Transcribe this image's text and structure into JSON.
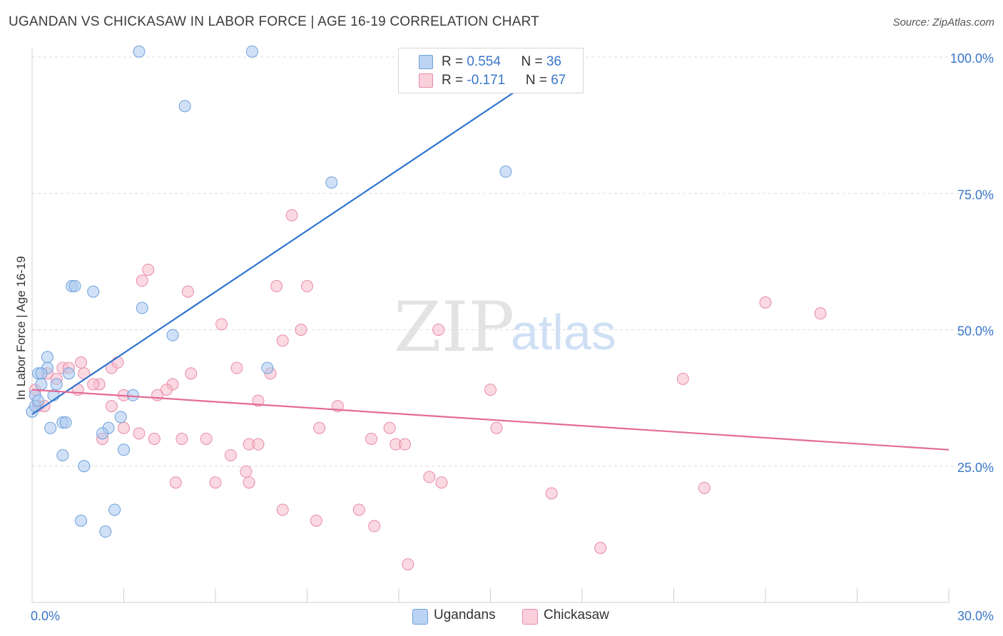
{
  "title": "UGANDAN VS CHICKASAW IN LABOR FORCE | AGE 16-19 CORRELATION CHART",
  "source": "Source: ZipAtlas.com",
  "watermark": {
    "zip": "ZIP",
    "atlas": "atlas"
  },
  "colors": {
    "blue_fill": "#a9c8f0",
    "blue_stroke": "#6e9fd8",
    "blue_line": "#2f76cf",
    "pink_fill": "#f5b9cb",
    "pink_stroke": "#e88aa8",
    "pink_line": "#e46b96",
    "axis_text": "#3a77c9",
    "grid": "#dcdcdc"
  },
  "legend_top": [
    {
      "r_label": "R = ",
      "r_value": "0.554",
      "n_label": "N = ",
      "n_value": "36"
    },
    {
      "r_label": "R = ",
      "r_value": "-0.171",
      "n_label": "N = ",
      "n_value": "67"
    }
  ],
  "legend_bottom": [
    "Ugandans",
    "Chickasaw"
  ],
  "chart_data": {
    "type": "scatter",
    "title": "UGANDAN VS CHICKASAW IN LABOR FORCE | AGE 16-19 CORRELATION CHART",
    "xlabel": "",
    "ylabel": "In Labor Force | Age 16-19",
    "xlim": [
      0,
      30
    ],
    "ylim": [
      0,
      100
    ],
    "x_tick_labels": [
      "0.0%",
      "30.0%"
    ],
    "y_tick_labels": [
      "25.0%",
      "50.0%",
      "75.0%",
      "100.0%"
    ],
    "y_ticks": [
      25,
      50,
      75,
      100
    ],
    "grid": true,
    "legend_position": "top-center",
    "series": [
      {
        "name": "Ugandans",
        "color": "#a9c8f0",
        "trend": {
          "x": [
            0,
            17.5
          ],
          "y": [
            34.5,
            100
          ]
        },
        "points": [
          [
            3.5,
            101
          ],
          [
            7.2,
            101
          ],
          [
            5.0,
            91
          ],
          [
            9.8,
            77
          ],
          [
            15.5,
            79
          ],
          [
            1.3,
            58
          ],
          [
            1.4,
            58
          ],
          [
            2.0,
            57
          ],
          [
            3.6,
            54
          ],
          [
            4.6,
            49
          ],
          [
            0.5,
            45
          ],
          [
            0.5,
            43
          ],
          [
            0.2,
            42
          ],
          [
            0.3,
            42
          ],
          [
            1.2,
            42
          ],
          [
            7.7,
            43
          ],
          [
            0.3,
            40
          ],
          [
            0.8,
            40
          ],
          [
            0.1,
            38
          ],
          [
            0.7,
            38
          ],
          [
            3.3,
            38
          ],
          [
            2.9,
            34
          ],
          [
            0.6,
            32
          ],
          [
            1.0,
            33
          ],
          [
            1.1,
            33
          ],
          [
            2.5,
            32
          ],
          [
            2.3,
            31
          ],
          [
            3.0,
            28
          ],
          [
            1.0,
            27
          ],
          [
            1.7,
            25
          ],
          [
            2.7,
            17
          ],
          [
            1.6,
            15
          ],
          [
            2.4,
            13
          ],
          [
            0.0,
            35
          ],
          [
            0.1,
            36
          ],
          [
            0.2,
            37
          ]
        ]
      },
      {
        "name": "Chickasaw",
        "color": "#f5b9cb",
        "trend": {
          "x": [
            0,
            30
          ],
          "y": [
            39,
            28
          ]
        },
        "points": [
          [
            8.5,
            71
          ],
          [
            3.8,
            61
          ],
          [
            3.6,
            59
          ],
          [
            8.0,
            58
          ],
          [
            9.0,
            58
          ],
          [
            5.1,
            57
          ],
          [
            24.0,
            55
          ],
          [
            25.8,
            53
          ],
          [
            6.2,
            51
          ],
          [
            8.8,
            50
          ],
          [
            13.3,
            50
          ],
          [
            8.2,
            48
          ],
          [
            1.0,
            43
          ],
          [
            2.6,
            43
          ],
          [
            6.7,
            43
          ],
          [
            7.8,
            42
          ],
          [
            5.2,
            42
          ],
          [
            0.5,
            42
          ],
          [
            1.2,
            43
          ],
          [
            1.7,
            42
          ],
          [
            0.8,
            41
          ],
          [
            2.2,
            40
          ],
          [
            4.6,
            40
          ],
          [
            2.0,
            40
          ],
          [
            4.4,
            39
          ],
          [
            15.0,
            39
          ],
          [
            21.3,
            41
          ],
          [
            3.0,
            38
          ],
          [
            4.1,
            38
          ],
          [
            7.4,
            37
          ],
          [
            10.0,
            36
          ],
          [
            2.6,
            36
          ],
          [
            1.5,
            39
          ],
          [
            3.0,
            32
          ],
          [
            3.5,
            31
          ],
          [
            4.0,
            30
          ],
          [
            4.9,
            30
          ],
          [
            5.7,
            30
          ],
          [
            7.1,
            29
          ],
          [
            7.4,
            29
          ],
          [
            9.4,
            32
          ],
          [
            11.1,
            30
          ],
          [
            11.7,
            32
          ],
          [
            11.9,
            29
          ],
          [
            12.2,
            29
          ],
          [
            15.2,
            32
          ],
          [
            2.3,
            30
          ],
          [
            6.5,
            27
          ],
          [
            7.0,
            24
          ],
          [
            4.7,
            22
          ],
          [
            6.0,
            22
          ],
          [
            7.1,
            22
          ],
          [
            13.0,
            23
          ],
          [
            13.4,
            22
          ],
          [
            17.0,
            20
          ],
          [
            22.0,
            21
          ],
          [
            8.2,
            17
          ],
          [
            9.3,
            15
          ],
          [
            10.7,
            17
          ],
          [
            11.2,
            14
          ],
          [
            12.3,
            7
          ],
          [
            18.6,
            10
          ],
          [
            1.6,
            44
          ],
          [
            0.1,
            39
          ],
          [
            0.2,
            36
          ],
          [
            0.4,
            36
          ],
          [
            2.8,
            44
          ]
        ]
      }
    ]
  }
}
